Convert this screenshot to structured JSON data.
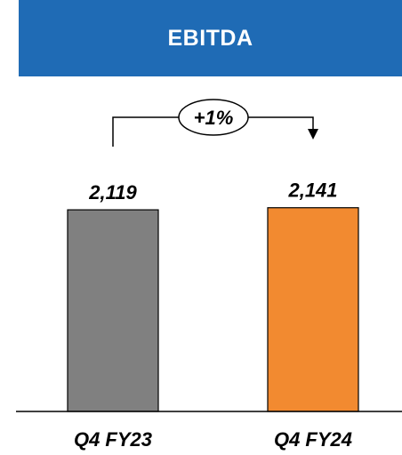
{
  "header": {
    "title": "EBITDA"
  },
  "chart_data": {
    "type": "bar",
    "categories": [
      "Q4 FY23",
      "Q4 FY24"
    ],
    "values": [
      2119,
      2141
    ],
    "data_labels": [
      "2,119",
      "2,141"
    ],
    "colors": [
      "#808080",
      "#f28a30"
    ],
    "change_label": "+1%",
    "title": "EBITDA",
    "xlabel": "",
    "ylabel": "",
    "ylim": [
      0,
      2400
    ],
    "grid": false,
    "legend": "none"
  }
}
